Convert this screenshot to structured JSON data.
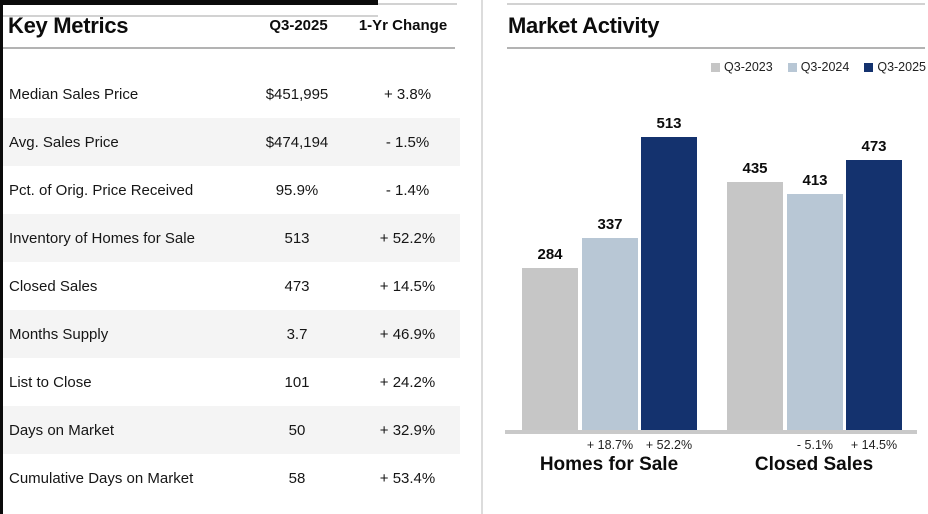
{
  "key_metrics": {
    "title": "Key Metrics",
    "col_period": "Q3-2025",
    "col_change": "1-Yr Change",
    "rows": [
      {
        "label": "Median Sales Price",
        "value": "$451,995",
        "change": "+ 3.8%"
      },
      {
        "label": "Avg. Sales Price",
        "value": "$474,194",
        "change": "- 1.5%"
      },
      {
        "label": "Pct. of Orig. Price Received",
        "value": "95.9%",
        "change": "- 1.4%"
      },
      {
        "label": "Inventory of Homes for Sale",
        "value": "513",
        "change": "+ 52.2%"
      },
      {
        "label": "Closed Sales",
        "value": "473",
        "change": "+ 14.5%"
      },
      {
        "label": "Months Supply",
        "value": "3.7",
        "change": "+ 46.9%"
      },
      {
        "label": "List to Close",
        "value": "101",
        "change": "+ 24.2%"
      },
      {
        "label": "Days on Market",
        "value": "50",
        "change": "+ 32.9%"
      },
      {
        "label": "Cumulative Days on Market",
        "value": "58",
        "change": "+ 53.4%"
      }
    ]
  },
  "market_activity": {
    "title": "Market Activity"
  },
  "chart_data": {
    "type": "bar",
    "title": "Market Activity",
    "categories": [
      "Homes for Sale",
      "Closed Sales"
    ],
    "series": [
      {
        "name": "Q3-2023",
        "color": "#C6C6C6",
        "values": [
          284,
          435
        ],
        "changes": [
          "",
          ""
        ]
      },
      {
        "name": "Q3-2024",
        "color": "#B8C7D5",
        "values": [
          337,
          413
        ],
        "changes": [
          "+ 18.7%",
          "- 5.1%"
        ]
      },
      {
        "name": "Q3-2025",
        "color": "#14326E",
        "values": [
          513,
          473
        ],
        "changes": [
          "+ 52.2%",
          "+ 14.5%"
        ]
      }
    ],
    "ylim": [
      0,
      513
    ],
    "grid": false,
    "legend_position": "top-right",
    "value_labels": true,
    "xlabel": "",
    "ylabel": ""
  },
  "colors": {
    "q3_2023": "#C6C6C6",
    "q3_2024": "#B8C7D5",
    "q3_2025": "#14326E",
    "row_stripe": "#F4F4F4",
    "axis_line": "#C9C9C9",
    "rule": "#B3B3B3"
  }
}
